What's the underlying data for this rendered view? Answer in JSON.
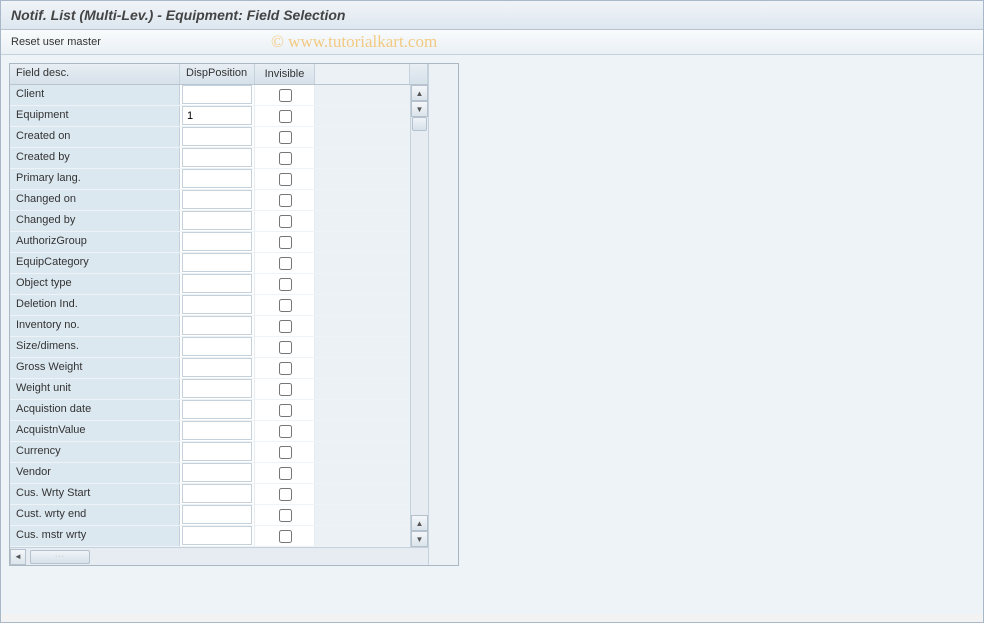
{
  "window": {
    "title": "Notif. List (Multi-Lev.) - Equipment: Field Selection"
  },
  "toolbar": {
    "reset_label": "Reset user master"
  },
  "watermark": "© www.tutorialkart.com",
  "table": {
    "columns": {
      "field_desc": "Field desc.",
      "disp_position": "DispPosition",
      "invisible": "Invisible"
    },
    "rows": [
      {
        "label": "Client",
        "position": "",
        "invisible": false
      },
      {
        "label": "Equipment",
        "position": "1",
        "invisible": false
      },
      {
        "label": "Created on",
        "position": "",
        "invisible": false
      },
      {
        "label": "Created by",
        "position": "",
        "invisible": false
      },
      {
        "label": "Primary lang.",
        "position": "",
        "invisible": false
      },
      {
        "label": "Changed on",
        "position": "",
        "invisible": false
      },
      {
        "label": "Changed by",
        "position": "",
        "invisible": false
      },
      {
        "label": "AuthorizGroup",
        "position": "",
        "invisible": false
      },
      {
        "label": "EquipCategory",
        "position": "",
        "invisible": false
      },
      {
        "label": "Object type",
        "position": "",
        "invisible": false
      },
      {
        "label": "Deletion Ind.",
        "position": "",
        "invisible": false
      },
      {
        "label": "Inventory no.",
        "position": "",
        "invisible": false
      },
      {
        "label": "Size/dimens.",
        "position": "",
        "invisible": false
      },
      {
        "label": "Gross Weight",
        "position": "",
        "invisible": false
      },
      {
        "label": "Weight unit",
        "position": "",
        "invisible": false
      },
      {
        "label": "Acquistion date",
        "position": "",
        "invisible": false
      },
      {
        "label": "AcquistnValue",
        "position": "",
        "invisible": false
      },
      {
        "label": "Currency",
        "position": "",
        "invisible": false
      },
      {
        "label": "Vendor",
        "position": "",
        "invisible": false
      },
      {
        "label": "Cus. Wrty Start",
        "position": "",
        "invisible": false
      },
      {
        "label": "Cust. wrty end",
        "position": "",
        "invisible": false
      },
      {
        "label": "Cus. mstr wrty",
        "position": "",
        "invisible": false
      }
    ]
  },
  "colors": {
    "header_bg_top": "#f0f4f8",
    "header_bg_bot": "#dde7ef",
    "row_label_bg": "#dce8f0",
    "border": "#c5d2dc",
    "page_bg": "#eef3f7"
  }
}
